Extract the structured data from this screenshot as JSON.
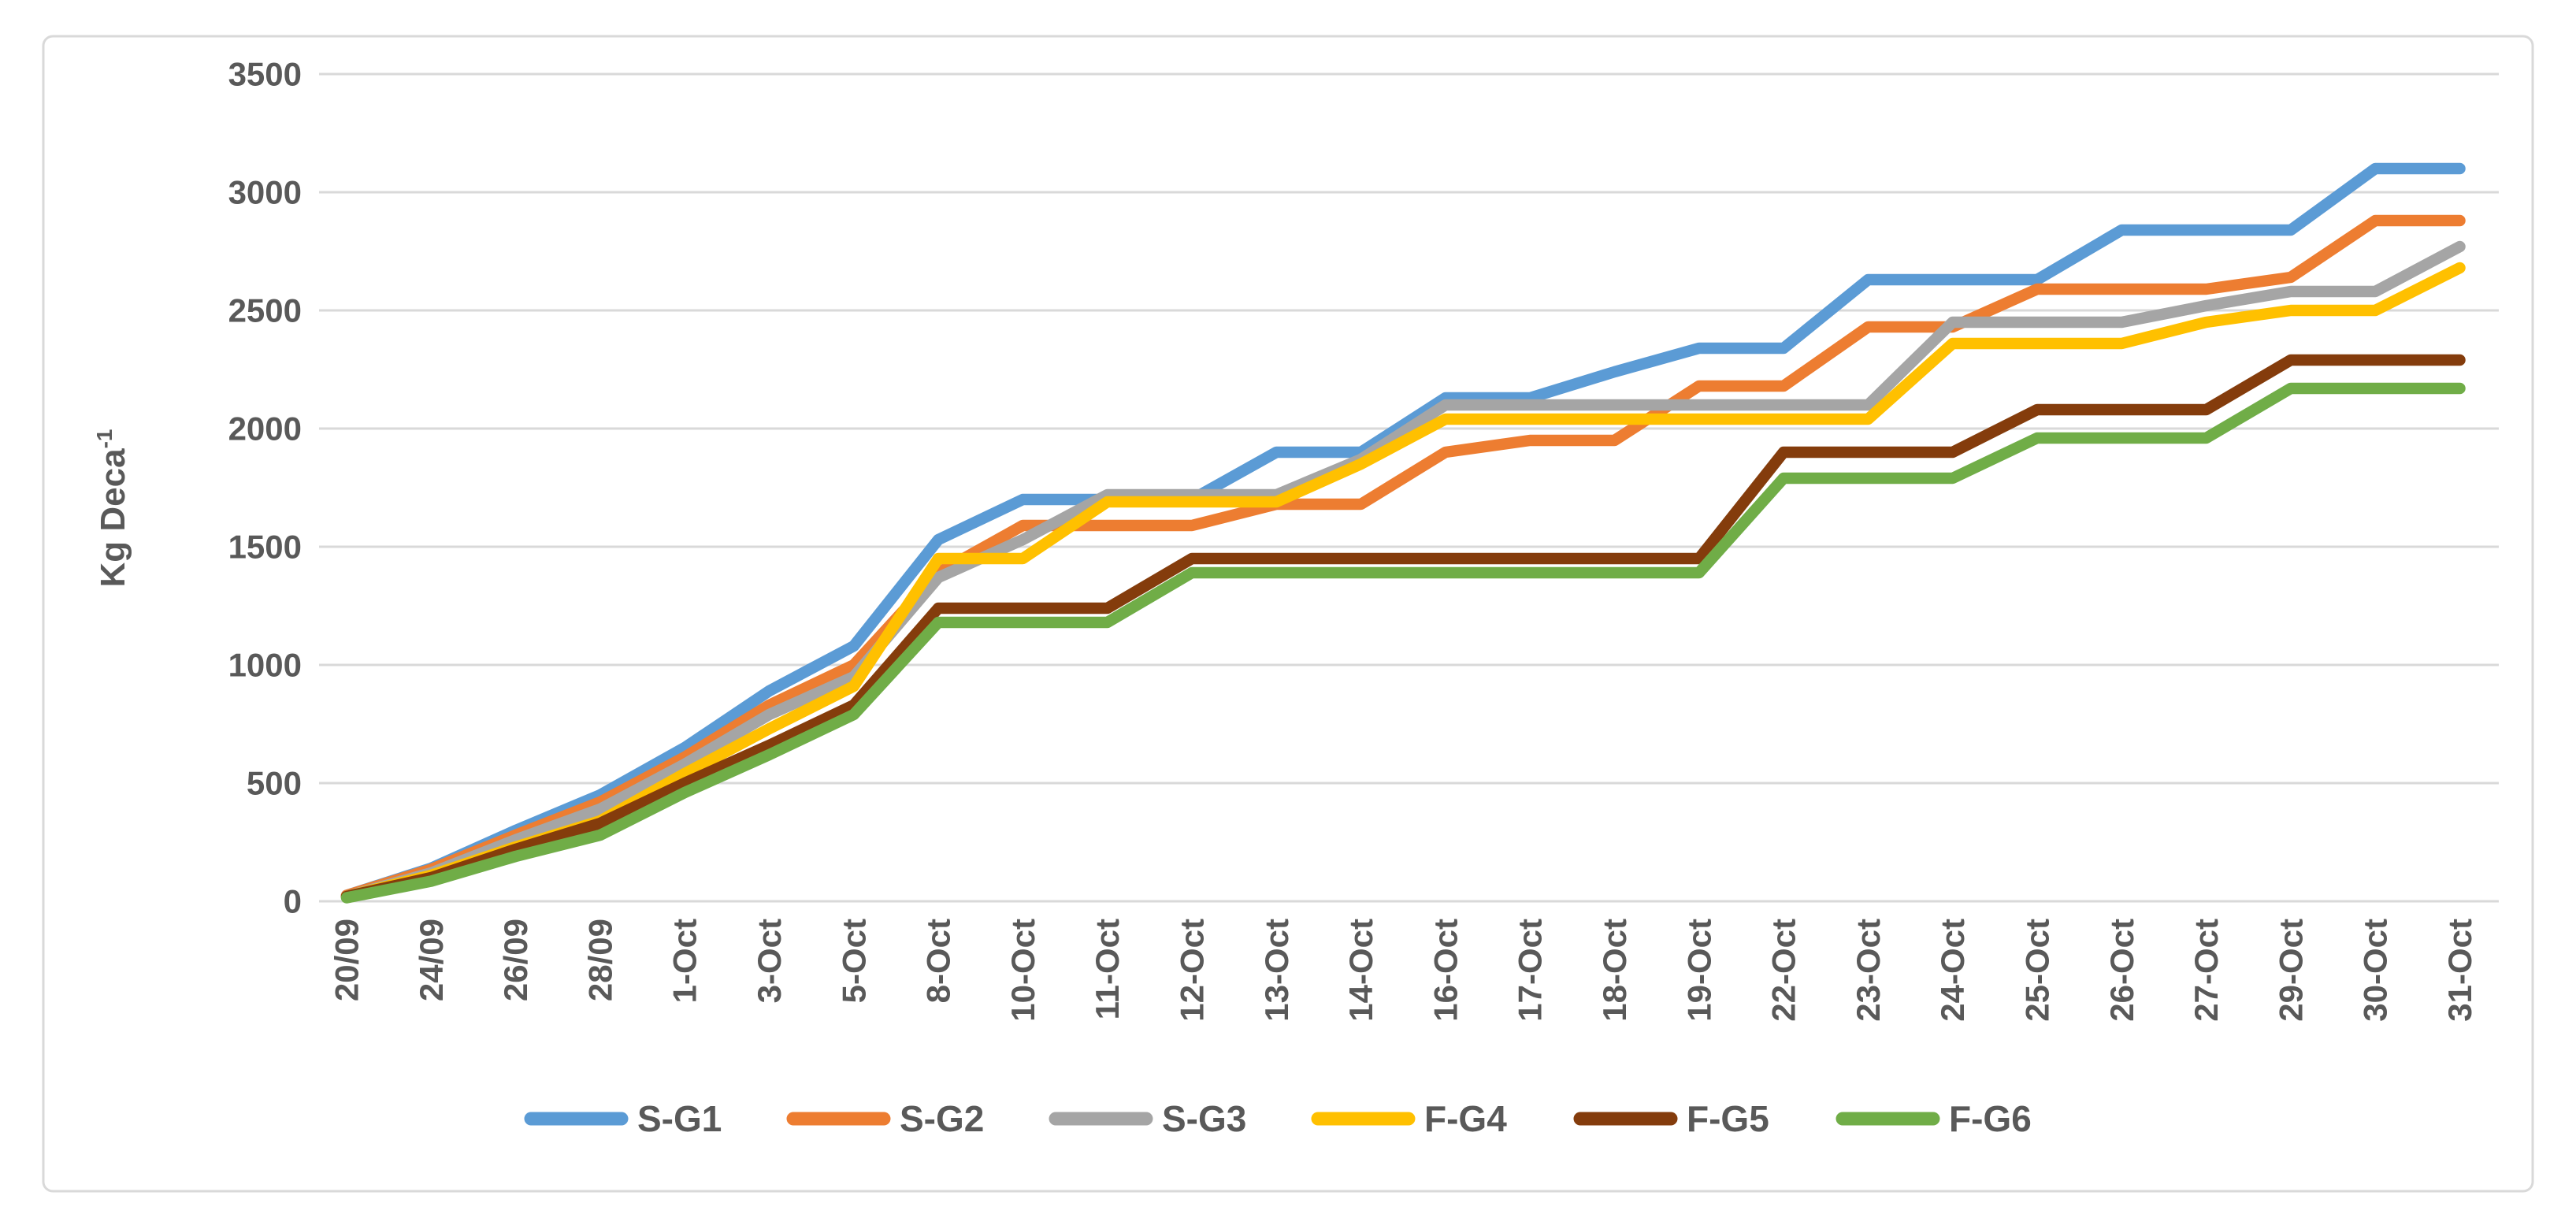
{
  "chart_data": {
    "type": "line",
    "title": "",
    "xlabel": "",
    "ylabel": "Kg Deca⁻¹",
    "ylabel_main": "Kg Deca",
    "ylabel_sup": "-1",
    "ylim": [
      0,
      3500
    ],
    "y_tick_step": 500,
    "y_ticks": [
      "0",
      "500",
      "1000",
      "1500",
      "2000",
      "2500",
      "3000",
      "3500"
    ],
    "grid": "horizontal",
    "legend_position": "bottom",
    "categories": [
      "20/09",
      "24/09",
      "26/09",
      "28/09",
      "1-Oct",
      "3-Oct",
      "5-Oct",
      "8-Oct",
      "10-Oct",
      "11-Oct",
      "12-Oct",
      "13-Oct",
      "14-Oct",
      "16-Oct",
      "17-Oct",
      "18-Oct",
      "19-Oct",
      "22-Oct",
      "23-Oct",
      "24-Oct",
      "25-Oct",
      "26-Oct",
      "27-Oct",
      "29-Oct",
      "30-Oct",
      "31-Oct"
    ],
    "series": [
      {
        "name": "S-G1",
        "color": "#5B9BD5",
        "values": [
          25,
          140,
          300,
          450,
          650,
          890,
          1080,
          1530,
          1700,
          1700,
          1700,
          1900,
          1900,
          2130,
          2130,
          2240,
          2340,
          2340,
          2630,
          2630,
          2630,
          2840,
          2840,
          2840,
          3100,
          3100
        ]
      },
      {
        "name": "S-G2",
        "color": "#ED7D31",
        "values": [
          25,
          135,
          280,
          420,
          610,
          830,
          1000,
          1390,
          1590,
          1590,
          1590,
          1680,
          1680,
          1900,
          1950,
          1950,
          2180,
          2180,
          2430,
          2430,
          2590,
          2590,
          2590,
          2640,
          2880,
          2880
        ]
      },
      {
        "name": "S-G3",
        "color": "#A5A5A5",
        "values": [
          20,
          120,
          260,
          390,
          580,
          790,
          950,
          1370,
          1530,
          1720,
          1720,
          1720,
          1870,
          2100,
          2100,
          2100,
          2100,
          2100,
          2100,
          2450,
          2450,
          2450,
          2520,
          2580,
          2580,
          2770
        ]
      },
      {
        "name": "F-G4",
        "color": "#FFC000",
        "values": [
          20,
          110,
          230,
          340,
          540,
          730,
          910,
          1450,
          1450,
          1690,
          1690,
          1690,
          1850,
          2040,
          2040,
          2040,
          2040,
          2040,
          2040,
          2360,
          2360,
          2360,
          2450,
          2500,
          2500,
          2680
        ]
      },
      {
        "name": "F-G5",
        "color": "#843C0C",
        "values": [
          20,
          100,
          220,
          330,
          500,
          660,
          830,
          1240,
          1240,
          1240,
          1450,
          1450,
          1450,
          1450,
          1450,
          1450,
          1450,
          1900,
          1900,
          1900,
          2080,
          2080,
          2080,
          2290,
          2290,
          2290
        ]
      },
      {
        "name": "F-G6",
        "color": "#70AD47",
        "values": [
          15,
          85,
          190,
          280,
          460,
          620,
          790,
          1180,
          1180,
          1180,
          1390,
          1390,
          1390,
          1390,
          1390,
          1390,
          1390,
          1790,
          1790,
          1790,
          1960,
          1960,
          1960,
          2170,
          2170,
          2170
        ]
      }
    ]
  },
  "colors": {
    "axis_text": "#595959",
    "gridline": "#D9D9D9",
    "chart_border": "#D9D9D9",
    "background": "#FFFFFF"
  }
}
